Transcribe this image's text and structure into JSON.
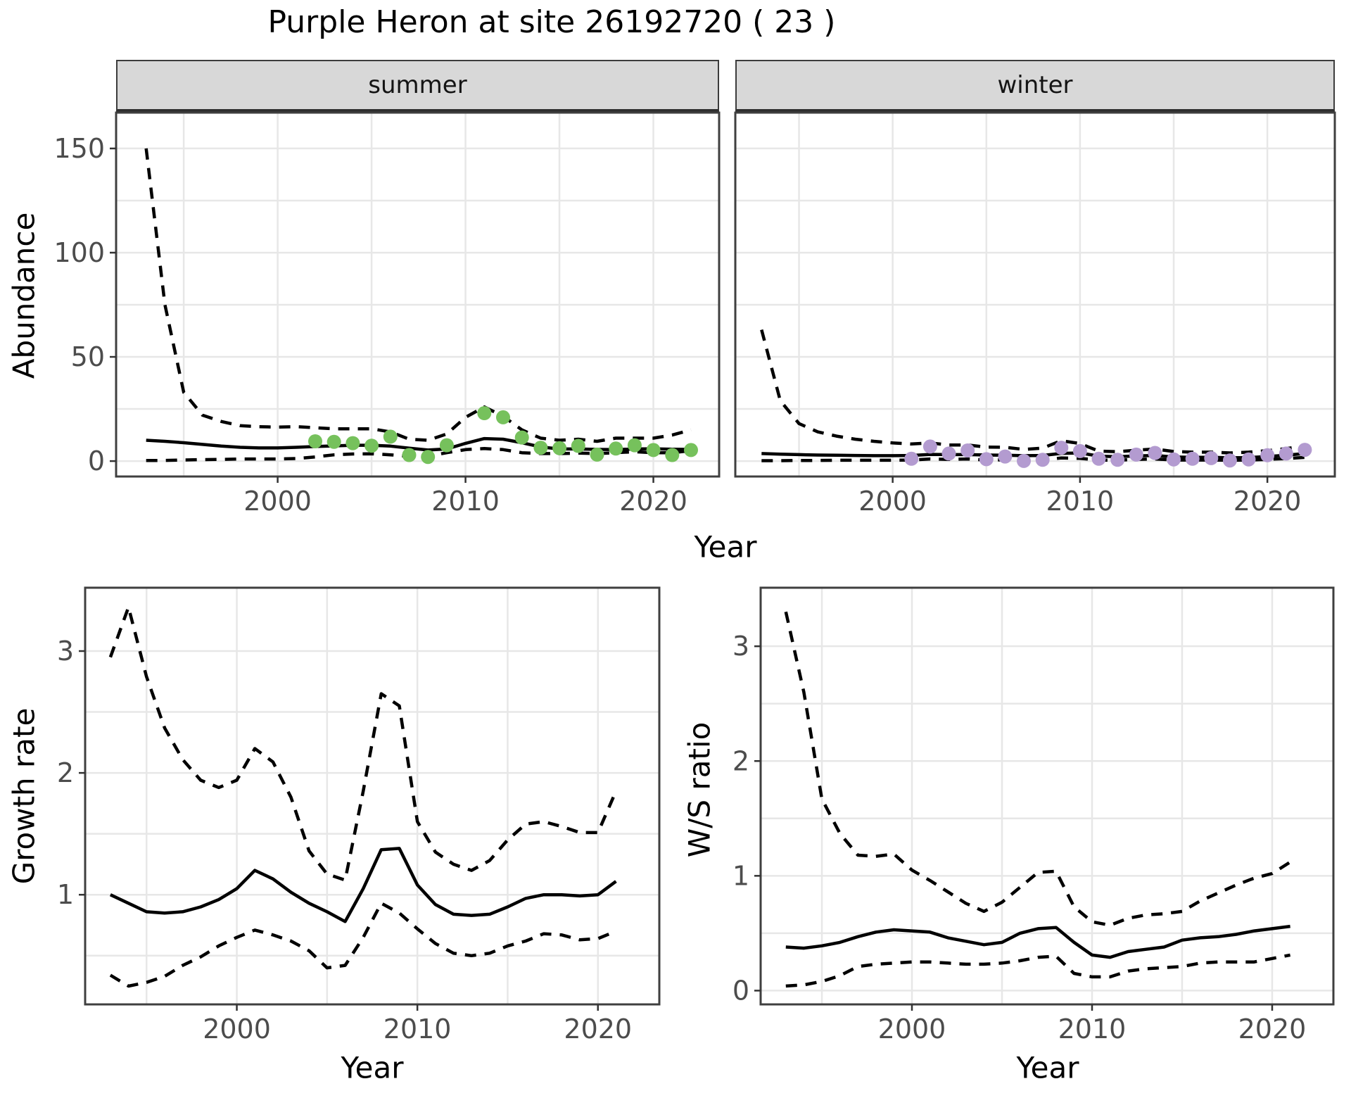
{
  "title": "Purple Heron at site 26192720 ( 23 )",
  "facets": [
    {
      "label": "summer"
    },
    {
      "label": "winter"
    }
  ],
  "axes": {
    "abundance_label": "Abundance",
    "growth_label": "Growth rate",
    "ws_label": "W/S ratio",
    "year_label_top": "Year",
    "year_label_bottom_left": "Year",
    "year_label_bottom_right": "Year"
  },
  "colors": {
    "summer_point": "#76c15c",
    "winter_point": "#b39bd0",
    "line": "#000000",
    "grid": "#e7e7e7",
    "panel_border": "#3f3f3f",
    "strip_bg": "#d8d8d8",
    "tick_text": "#4c4c4c",
    "tick_mark": "#333333"
  },
  "chart_data": [
    {
      "id": "summer_abundance",
      "type": "line",
      "facet": "summer",
      "ylabel": "Abundance",
      "xlabel": "Year",
      "xlim": [
        1991.4,
        2023.5
      ],
      "ylim": [
        -7.4,
        167.2
      ],
      "xticks": [
        {
          "v": 2000,
          "label": "2000"
        },
        {
          "v": 2010,
          "label": "2010"
        },
        {
          "v": 2020,
          "label": "2020"
        }
      ],
      "yticks": [
        {
          "v": 0,
          "label": "0"
        },
        {
          "v": 50,
          "label": "50"
        },
        {
          "v": 100,
          "label": "100"
        },
        {
          "v": 150,
          "label": "150"
        }
      ],
      "xgrid": [
        1995,
        2000,
        2005,
        2010,
        2015,
        2020
      ],
      "ygrid": [
        0,
        25,
        50,
        75,
        100,
        125,
        150
      ],
      "years": [
        1993,
        1994,
        1995,
        1996,
        1997,
        1998,
        1999,
        2000,
        2001,
        2002,
        2003,
        2004,
        2005,
        2006,
        2007,
        2008,
        2009,
        2010,
        2011,
        2012,
        2013,
        2014,
        2015,
        2016,
        2017,
        2018,
        2019,
        2020,
        2021,
        2022
      ],
      "series": [
        {
          "name": "median",
          "style": "solid",
          "values": [
            10,
            9.5,
            8.8,
            8,
            7.2,
            6.6,
            6.3,
            6.3,
            6.6,
            7,
            7.3,
            7.6,
            7.6,
            7.2,
            6.2,
            5.3,
            5.8,
            8.5,
            10.8,
            10.5,
            8.8,
            6.8,
            5.8,
            5.8,
            5.6,
            5.5,
            5.8,
            5.9,
            5.7,
            5.6
          ]
        },
        {
          "name": "upper_ci",
          "style": "dashed",
          "values": [
            150,
            75,
            33,
            22,
            19,
            17,
            16.5,
            16.3,
            16.5,
            16,
            15.5,
            15.5,
            15.5,
            14,
            10.5,
            10,
            13,
            21,
            26,
            21.5,
            15,
            11,
            10,
            10.5,
            9.5,
            11,
            11,
            11,
            12.5,
            15
          ]
        },
        {
          "name": "lower_ci",
          "style": "dashed",
          "values": [
            0.3,
            0.3,
            0.5,
            0.7,
            0.8,
            1,
            1,
            1,
            1.2,
            2,
            3,
            3.4,
            3.5,
            3,
            2.3,
            2.3,
            4,
            5.5,
            6,
            5.5,
            4,
            3.6,
            3.6,
            3.8,
            3.6,
            4,
            4.5,
            4,
            4,
            5
          ]
        }
      ],
      "points": {
        "color_key": "summer_point",
        "years": [
          2002,
          2003,
          2004,
          2005,
          2006,
          2007,
          2008,
          2009,
          2011,
          2012,
          2013,
          2014,
          2015,
          2016,
          2017,
          2018,
          2019,
          2020,
          2021,
          2022
        ],
        "values": [
          9.5,
          9.2,
          8.6,
          7.4,
          11.7,
          2.9,
          2,
          7.6,
          23,
          21,
          11.3,
          6.4,
          6.2,
          7.3,
          3.1,
          6,
          7.6,
          5.3,
          2.9,
          5.3
        ]
      }
    },
    {
      "id": "winter_abundance",
      "type": "line",
      "facet": "winter",
      "ylabel": "Abundance",
      "xlabel": "Year",
      "xlim": [
        1991.6,
        2023.6
      ],
      "ylim": [
        -7.4,
        167.2
      ],
      "xticks": [
        {
          "v": 2000,
          "label": "2000"
        },
        {
          "v": 2010,
          "label": "2010"
        },
        {
          "v": 2020,
          "label": "2020"
        }
      ],
      "yticks": [],
      "xgrid": [
        1995,
        2000,
        2005,
        2010,
        2015,
        2020
      ],
      "ygrid": [
        0,
        25,
        50,
        75,
        100,
        125,
        150
      ],
      "years": [
        1993,
        1994,
        1995,
        1996,
        1997,
        1998,
        1999,
        2000,
        2001,
        2002,
        2003,
        2004,
        2005,
        2006,
        2007,
        2008,
        2009,
        2010,
        2011,
        2012,
        2013,
        2014,
        2015,
        2016,
        2017,
        2018,
        2019,
        2020,
        2021,
        2022
      ],
      "series": [
        {
          "name": "median",
          "style": "solid",
          "values": [
            3.6,
            3.3,
            3.1,
            2.9,
            2.8,
            2.7,
            2.6,
            2.6,
            2.7,
            3.2,
            3.1,
            3.1,
            2.9,
            2.8,
            2.6,
            2.7,
            3.7,
            3.9,
            2.4,
            2.1,
            2.5,
            2.7,
            2,
            1.8,
            1.8,
            1.6,
            1.7,
            2.2,
            2.8,
            3.6
          ]
        },
        {
          "name": "upper_ci",
          "style": "dashed",
          "values": [
            63,
            29,
            18,
            14,
            12,
            10.5,
            9.5,
            8.7,
            8.2,
            8.7,
            7.7,
            7.7,
            6.7,
            6.6,
            5.6,
            6.2,
            9.8,
            8.4,
            4.8,
            4.5,
            5.2,
            5.8,
            4.6,
            4.3,
            4.3,
            3.9,
            4.3,
            5,
            6,
            7.2
          ]
        },
        {
          "name": "lower_ci",
          "style": "dashed",
          "values": [
            0.2,
            0.2,
            0.3,
            0.3,
            0.4,
            0.4,
            0.4,
            0.4,
            0.5,
            1,
            0.8,
            1,
            0.5,
            0.6,
            0.3,
            0.5,
            1.5,
            1.3,
            0.5,
            0.4,
            0.8,
            1,
            0.5,
            0.5,
            0.5,
            0.4,
            0.5,
            0.8,
            1.2,
            1.8
          ]
        }
      ],
      "points": {
        "color_key": "winter_point",
        "years": [
          2001,
          2002,
          2003,
          2004,
          2005,
          2006,
          2007,
          2008,
          2009,
          2010,
          2011,
          2012,
          2013,
          2014,
          2015,
          2016,
          2017,
          2018,
          2019,
          2020,
          2021,
          2022
        ],
        "values": [
          1.1,
          7,
          3.6,
          5.1,
          0.9,
          2.2,
          0.05,
          0.6,
          6.4,
          4.8,
          1.1,
          0.6,
          3.1,
          3.9,
          0.8,
          1.1,
          1.4,
          0.3,
          0.8,
          2.8,
          3.6,
          5.4
        ]
      }
    },
    {
      "id": "growth_rate",
      "type": "line",
      "facet": null,
      "ylabel": "Growth rate",
      "xlabel": "Year",
      "xlim": [
        1991.6,
        2023.4
      ],
      "ylim": [
        0.1,
        3.52
      ],
      "xticks": [
        {
          "v": 2000,
          "label": "2000"
        },
        {
          "v": 2010,
          "label": "2010"
        },
        {
          "v": 2020,
          "label": "2020"
        }
      ],
      "yticks": [
        {
          "v": 1,
          "label": "1"
        },
        {
          "v": 2,
          "label": "2"
        },
        {
          "v": 3,
          "label": "3"
        }
      ],
      "xgrid": [
        1995,
        2000,
        2005,
        2010,
        2015,
        2020
      ],
      "ygrid": [
        0.5,
        1,
        1.5,
        2,
        2.5,
        3
      ],
      "years": [
        1993,
        1994,
        1995,
        1996,
        1997,
        1998,
        1999,
        2000,
        2001,
        2002,
        2003,
        2004,
        2005,
        2006,
        2007,
        2008,
        2009,
        2010,
        2011,
        2012,
        2013,
        2014,
        2015,
        2016,
        2017,
        2018,
        2019,
        2020,
        2021
      ],
      "series": [
        {
          "name": "median",
          "style": "solid",
          "values": [
            1,
            0.93,
            0.86,
            0.85,
            0.86,
            0.9,
            0.96,
            1.05,
            1.2,
            1.13,
            1.02,
            0.93,
            0.86,
            0.78,
            1.05,
            1.37,
            1.38,
            1.08,
            0.92,
            0.84,
            0.83,
            0.84,
            0.9,
            0.97,
            1,
            1,
            0.99,
            1,
            1.11
          ]
        },
        {
          "name": "upper_ci",
          "style": "dashed",
          "values": [
            2.95,
            3.36,
            2.79,
            2.37,
            2.11,
            1.94,
            1.88,
            1.94,
            2.2,
            2.09,
            1.8,
            1.36,
            1.17,
            1.12,
            1.85,
            2.65,
            2.55,
            1.6,
            1.35,
            1.25,
            1.2,
            1.28,
            1.45,
            1.58,
            1.6,
            1.56,
            1.51,
            1.51,
            1.85
          ]
        },
        {
          "name": "lower_ci",
          "style": "dashed",
          "values": [
            0.34,
            0.25,
            0.28,
            0.33,
            0.42,
            0.49,
            0.58,
            0.65,
            0.71,
            0.67,
            0.62,
            0.54,
            0.4,
            0.42,
            0.65,
            0.93,
            0.85,
            0.72,
            0.6,
            0.52,
            0.5,
            0.52,
            0.58,
            0.62,
            0.68,
            0.67,
            0.63,
            0.64,
            0.7
          ]
        }
      ],
      "points": null
    },
    {
      "id": "ws_ratio",
      "type": "line",
      "facet": null,
      "ylabel": "W/S ratio",
      "xlabel": "Year",
      "xlim": [
        1991.6,
        2023.4
      ],
      "ylim": [
        -0.12,
        3.51
      ],
      "xticks": [
        {
          "v": 2000,
          "label": "2000"
        },
        {
          "v": 2010,
          "label": "2010"
        },
        {
          "v": 2020,
          "label": "2020"
        }
      ],
      "yticks": [
        {
          "v": 0,
          "label": "0"
        },
        {
          "v": 1,
          "label": "1"
        },
        {
          "v": 2,
          "label": "2"
        },
        {
          "v": 3,
          "label": "3"
        }
      ],
      "xgrid": [
        1995,
        2000,
        2005,
        2010,
        2015,
        2020
      ],
      "ygrid": [
        0,
        0.5,
        1,
        1.5,
        2,
        2.5,
        3
      ],
      "years": [
        1993,
        1994,
        1995,
        1996,
        1997,
        1998,
        1999,
        2000,
        2001,
        2002,
        2003,
        2004,
        2005,
        2006,
        2007,
        2008,
        2009,
        2010,
        2011,
        2012,
        2013,
        2014,
        2015,
        2016,
        2017,
        2018,
        2019,
        2020,
        2021
      ],
      "series": [
        {
          "name": "median",
          "style": "solid",
          "values": [
            0.38,
            0.37,
            0.39,
            0.42,
            0.47,
            0.51,
            0.53,
            0.52,
            0.51,
            0.46,
            0.43,
            0.4,
            0.42,
            0.5,
            0.54,
            0.55,
            0.42,
            0.31,
            0.29,
            0.34,
            0.36,
            0.38,
            0.44,
            0.46,
            0.47,
            0.49,
            0.52,
            0.54,
            0.56
          ]
        },
        {
          "name": "upper_ci",
          "style": "dashed",
          "values": [
            3.3,
            2.6,
            1.67,
            1.37,
            1.18,
            1.17,
            1.19,
            1.05,
            0.96,
            0.86,
            0.76,
            0.69,
            0.77,
            0.9,
            1.03,
            1.04,
            0.73,
            0.6,
            0.57,
            0.63,
            0.66,
            0.67,
            0.69,
            0.78,
            0.85,
            0.92,
            0.98,
            1.02,
            1.12
          ]
        },
        {
          "name": "lower_ci",
          "style": "dashed",
          "values": [
            0.04,
            0.05,
            0.08,
            0.13,
            0.21,
            0.23,
            0.24,
            0.25,
            0.25,
            0.24,
            0.23,
            0.23,
            0.24,
            0.26,
            0.29,
            0.3,
            0.15,
            0.12,
            0.12,
            0.17,
            0.19,
            0.2,
            0.21,
            0.24,
            0.25,
            0.25,
            0.25,
            0.28,
            0.31
          ]
        }
      ],
      "points": null
    }
  ]
}
